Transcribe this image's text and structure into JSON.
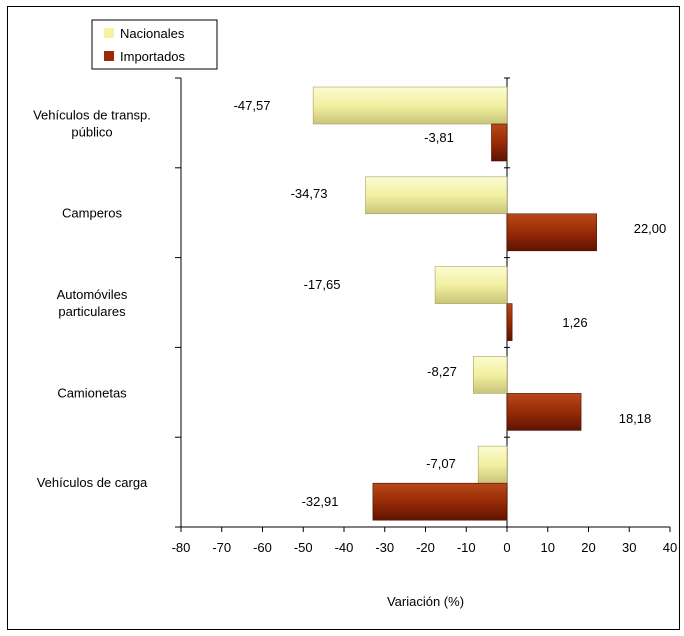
{
  "chart_data": {
    "type": "bar",
    "orientation": "horizontal",
    "categories": [
      [
        "Vehículos de transp.",
        "público"
      ],
      [
        "Camperos"
      ],
      [
        "Automóviles",
        "particulares"
      ],
      [
        "Camionetas"
      ],
      [
        "Vehículos de carga"
      ]
    ],
    "series": [
      {
        "name": "Nacionales",
        "color": "#f4f2a4",
        "values": [
          -47.57,
          -34.73,
          -17.65,
          -8.27,
          -7.07
        ],
        "labels": [
          "-47,57",
          "-34,73",
          "-17,65",
          "-8,27",
          "-7,07"
        ]
      },
      {
        "name": "Importados",
        "color": "#9c2a08",
        "values": [
          -3.81,
          22.0,
          1.26,
          18.18,
          -32.91
        ],
        "labels": [
          "-3,81",
          "22,00",
          "1,26",
          "18,18",
          "-32,91"
        ]
      }
    ],
    "xlabel": "Variación (%)",
    "ylabel": "",
    "xlim": [
      -80,
      40
    ],
    "xticks": [
      -80,
      -70,
      -60,
      -50,
      -40,
      -30,
      -20,
      -10,
      0,
      10,
      20,
      30,
      40
    ],
    "legend": "top-left",
    "grid": false
  }
}
